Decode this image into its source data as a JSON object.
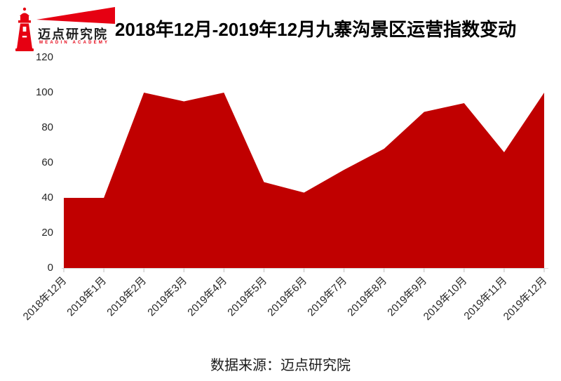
{
  "logo": {
    "name": "迈点研究院",
    "subtitle": "MEADIN ACADEMY",
    "brand_color": "#e60012",
    "icon": "lighthouse-icon"
  },
  "header": {
    "title": "2018年12月-2019年12月九寨沟景区运营指数变动"
  },
  "footer": {
    "source": "数据来源：迈点研究院"
  },
  "chart_data": {
    "type": "area",
    "title": "2018年12月-2019年12月九寨沟景区运营指数变动",
    "categories": [
      "2018年12月",
      "2019年1月",
      "2019年2月",
      "2019年3月",
      "2019年4月",
      "2019年5月",
      "2019年6月",
      "2019年7月",
      "2019年8月",
      "2019年9月",
      "2019年10月",
      "2019年11月",
      "2019年12月"
    ],
    "values": [
      40,
      40,
      100,
      95,
      100,
      49,
      43,
      56,
      68,
      89,
      94,
      66,
      100
    ],
    "series_name": "运营指数",
    "xlabel": "",
    "ylabel": "",
    "ylim": [
      0,
      120
    ],
    "y_ticks": [
      0,
      20,
      40,
      60,
      80,
      100,
      120
    ],
    "grid": false,
    "legend_position": "none",
    "fill_color": "#c00000",
    "axis_line_color": "#d9d9d9",
    "tick_color": "#bfbfbf"
  }
}
